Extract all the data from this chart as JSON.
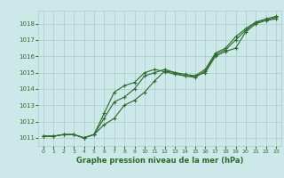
{
  "xlabel": "Graphe pression niveau de la mer (hPa)",
  "bg_color": "#cce8e8",
  "grid_color": "#aacccc",
  "line_color": "#2d6a2d",
  "text_color": "#2d6a2d",
  "xlim": [
    -0.5,
    23.5
  ],
  "ylim": [
    1010.5,
    1018.8
  ],
  "yticks": [
    1011,
    1012,
    1013,
    1014,
    1015,
    1016,
    1017,
    1018
  ],
  "xticks": [
    0,
    1,
    2,
    3,
    4,
    5,
    6,
    7,
    8,
    9,
    10,
    11,
    12,
    13,
    14,
    15,
    16,
    17,
    18,
    19,
    20,
    21,
    22,
    23
  ],
  "series": [
    [
      1011.1,
      1011.1,
      1011.2,
      1011.2,
      1011.0,
      1011.2,
      1011.8,
      1012.2,
      1013.0,
      1013.3,
      1013.8,
      1014.5,
      1015.1,
      1015.0,
      1014.9,
      1014.8,
      1015.0,
      1016.0,
      1016.3,
      1016.5,
      1017.5,
      1018.0,
      1018.2,
      1018.3
    ],
    [
      1011.1,
      1011.1,
      1011.2,
      1011.2,
      1011.0,
      1011.2,
      1012.2,
      1013.2,
      1013.5,
      1014.0,
      1014.8,
      1015.0,
      1015.2,
      1015.0,
      1014.8,
      1014.7,
      1015.1,
      1016.1,
      1016.4,
      1017.0,
      1017.6,
      1018.1,
      1018.2,
      1018.4
    ],
    [
      1011.1,
      1011.1,
      1011.2,
      1011.2,
      1011.0,
      1011.2,
      1012.5,
      1013.8,
      1014.2,
      1014.4,
      1015.0,
      1015.2,
      1015.05,
      1014.9,
      1014.8,
      1014.8,
      1015.2,
      1016.2,
      1016.5,
      1017.2,
      1017.7,
      1018.1,
      1018.3,
      1018.45
    ]
  ]
}
